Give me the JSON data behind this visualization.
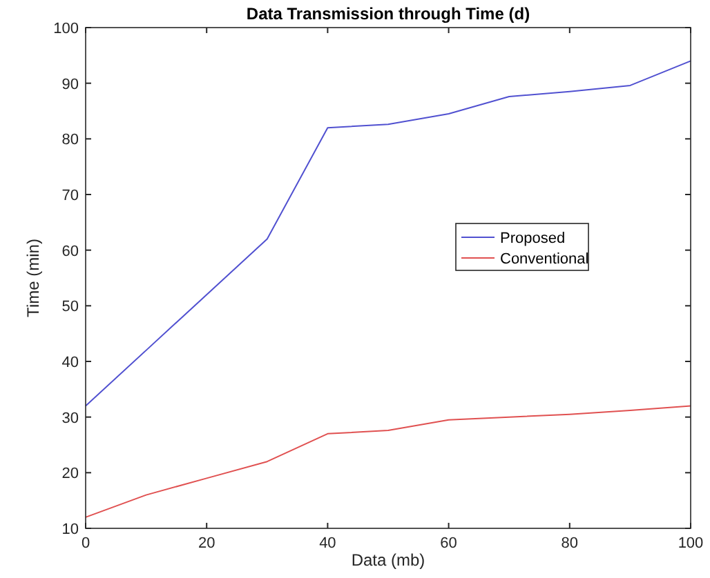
{
  "chart_data": {
    "type": "line",
    "title": "Data Transmission through Time (d)",
    "xlabel": "Data (mb)",
    "ylabel": "Time (min)",
    "x": [
      0,
      10,
      20,
      30,
      40,
      50,
      60,
      70,
      80,
      90,
      100
    ],
    "series": [
      {
        "name": "Proposed",
        "color": "#5050d0",
        "values": [
          32,
          42,
          52,
          62,
          82,
          82.6,
          84.5,
          87.6,
          88.5,
          89.6,
          94
        ]
      },
      {
        "name": "Conventional",
        "color": "#e05050",
        "values": [
          12,
          16,
          19,
          22,
          27,
          27.6,
          29.5,
          30,
          30.5,
          31.2,
          32
        ]
      }
    ],
    "xlim": [
      0,
      100
    ],
    "xticks": [
      0,
      20,
      40,
      60,
      80,
      100
    ],
    "ylim": [
      10,
      100
    ],
    "yticks": [
      10,
      20,
      30,
      40,
      50,
      60,
      70,
      80,
      90,
      100
    ],
    "grid": false,
    "legend": "right",
    "marker": "none",
    "line_style": "solid"
  }
}
